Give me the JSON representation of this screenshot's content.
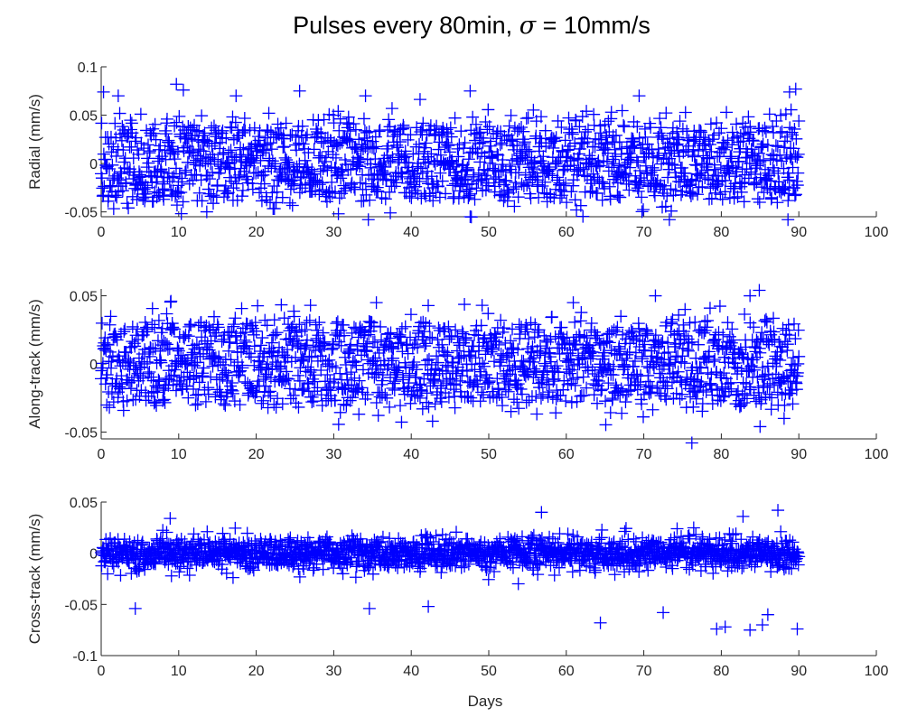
{
  "title_text": "Pulses every 80min, ",
  "title_sigma": "σ",
  "title_rest": " = 10mm/s",
  "chart_data": [
    {
      "type": "scatter",
      "marker": "+",
      "color": "#0000ff",
      "ylabel": "Radial (mm/s)",
      "xlabel": "",
      "xlim": [
        0,
        100
      ],
      "ylim": [
        -0.055,
        0.1
      ],
      "xticks": [
        "0",
        "10",
        "20",
        "30",
        "40",
        "50",
        "60",
        "70",
        "80",
        "90",
        "100"
      ],
      "yticks": [
        {
          "v": -0.05,
          "label": "-0.05"
        },
        {
          "v": 0,
          "label": "0"
        },
        {
          "v": 0.05,
          "label": "0.05"
        },
        {
          "v": 0.1,
          "label": "0.1"
        }
      ],
      "gen": {
        "seed": 11,
        "n": 1620,
        "x_max": 90,
        "modes": [
          -0.022,
          0.0,
          0.03
        ],
        "mode_sd": 0.012,
        "spread": 0.018,
        "ymin": -0.058,
        "ymax": 0.085
      },
      "outliers": [
        [
          0.3,
          0.074
        ],
        [
          2.2,
          0.07
        ],
        [
          9.7,
          0.082
        ],
        [
          10.6,
          0.076
        ],
        [
          17.4,
          0.07
        ],
        [
          25.6,
          0.075
        ],
        [
          34.1,
          0.07
        ],
        [
          47.6,
          0.075
        ],
        [
          69.4,
          0.07
        ],
        [
          88.8,
          0.074
        ],
        [
          89.6,
          0.077
        ],
        [
          30.6,
          -0.052
        ],
        [
          47.6,
          -0.055
        ],
        [
          73.3,
          -0.058
        ],
        [
          88.6,
          -0.058
        ]
      ]
    },
    {
      "type": "scatter",
      "marker": "+",
      "color": "#0000ff",
      "ylabel": "Along-track (mm/s)",
      "xlabel": "",
      "xlim": [
        0,
        100
      ],
      "ylim": [
        -0.055,
        0.055
      ],
      "xticks": [
        "0",
        "10",
        "20",
        "30",
        "40",
        "50",
        "60",
        "70",
        "80",
        "90",
        "100"
      ],
      "yticks": [
        {
          "v": -0.05,
          "label": "-0.05"
        },
        {
          "v": 0,
          "label": "0"
        },
        {
          "v": 0.05,
          "label": "0.05"
        }
      ],
      "gen": {
        "seed": 23,
        "n": 1620,
        "x_max": 90,
        "modes": [
          -0.016,
          0.0,
          0.018
        ],
        "mode_sd": 0.01,
        "spread": 0.014,
        "ymin": -0.05,
        "ymax": 0.052
      },
      "outliers": [
        [
          9.0,
          0.046
        ],
        [
          27.0,
          0.043
        ],
        [
          35.5,
          0.045
        ],
        [
          60.9,
          0.045
        ],
        [
          71.5,
          0.05
        ],
        [
          83.7,
          0.05
        ],
        [
          84.9,
          0.054
        ],
        [
          76.2,
          -0.058
        ],
        [
          85.0,
          -0.046
        ],
        [
          88.1,
          -0.04
        ]
      ]
    },
    {
      "type": "scatter",
      "marker": "+",
      "color": "#0000ff",
      "ylabel": "Cross-track (mm/s)",
      "xlabel": "Days",
      "xlim": [
        0,
        100
      ],
      "ylim": [
        -0.1,
        0.05
      ],
      "xticks": [
        "0",
        "10",
        "20",
        "30",
        "40",
        "50",
        "60",
        "70",
        "80",
        "90",
        "100"
      ],
      "yticks": [
        {
          "v": -0.1,
          "label": "-0.1"
        },
        {
          "v": -0.05,
          "label": "-0.05"
        },
        {
          "v": 0,
          "label": "0"
        },
        {
          "v": 0.05,
          "label": "0.05"
        }
      ],
      "gen": {
        "seed": 37,
        "n": 1620,
        "x_max": 90,
        "modes": [
          0.0
        ],
        "mode_sd": 0.008,
        "spread": 0.0,
        "ymin": -0.06,
        "ymax": 0.03
      },
      "outliers": [
        [
          8.9,
          0.034
        ],
        [
          56.8,
          0.04
        ],
        [
          74.3,
          0.024
        ],
        [
          82.8,
          0.036
        ],
        [
          87.3,
          0.042
        ],
        [
          4.4,
          -0.054
        ],
        [
          34.6,
          -0.054
        ],
        [
          42.2,
          -0.052
        ],
        [
          64.4,
          -0.068
        ],
        [
          72.5,
          -0.058
        ],
        [
          79.4,
          -0.074
        ],
        [
          80.5,
          -0.072
        ],
        [
          83.7,
          -0.075
        ],
        [
          85.3,
          -0.07
        ],
        [
          89.8,
          -0.074
        ],
        [
          86.0,
          -0.06
        ]
      ]
    }
  ]
}
